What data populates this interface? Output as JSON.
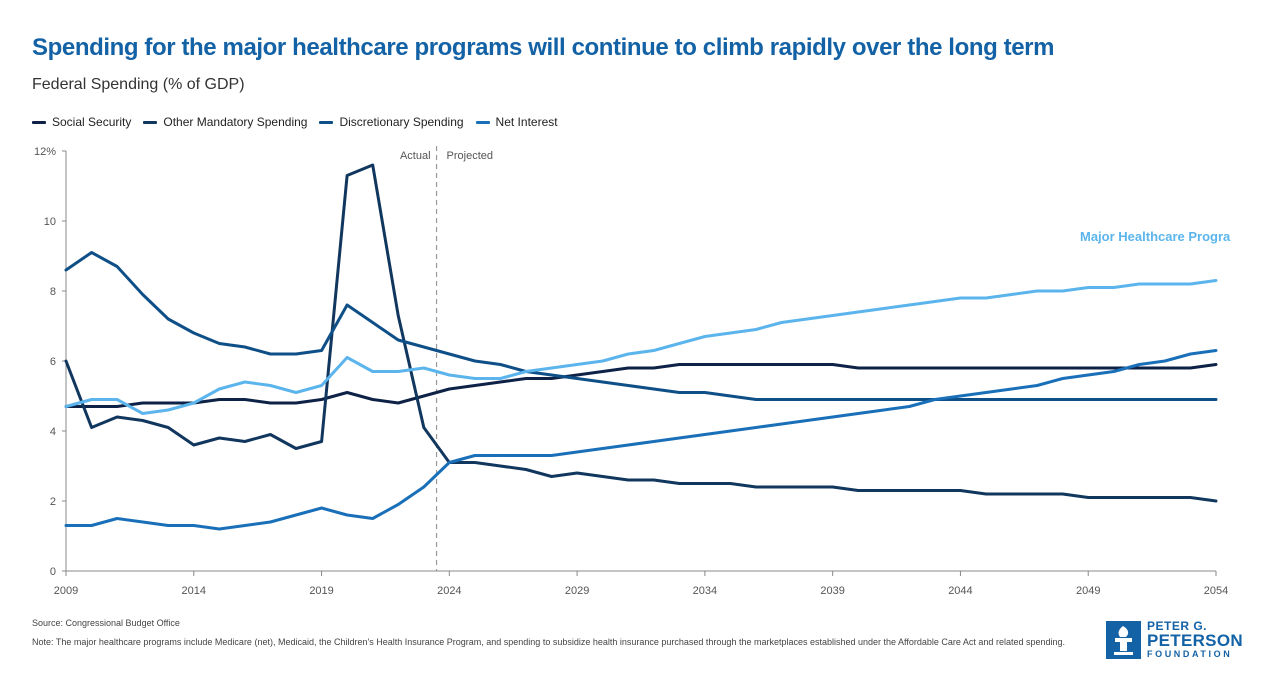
{
  "header": {
    "title": "Spending for the major healthcare programs will continue to climb rapidly over the long term",
    "subtitle": "Federal Spending (% of GDP)"
  },
  "legend": [
    {
      "label": "Social Security",
      "color": "#0d2246"
    },
    {
      "label": "Other Mandatory Spending",
      "color": "#12375f"
    },
    {
      "label": "Discretionary Spending",
      "color": "#0f4f88"
    },
    {
      "label": "Net Interest",
      "color": "#1a70b8"
    }
  ],
  "chart_data": {
    "type": "line",
    "title": "",
    "xlabel": "",
    "ylabel": "",
    "xlim": [
      2009,
      2054
    ],
    "ylim": [
      0,
      12
    ],
    "x_ticks": [
      "2009",
      "2014",
      "2019",
      "2024",
      "2029",
      "2034",
      "2039",
      "2044",
      "2049",
      "2054"
    ],
    "y_ticks": [
      "0",
      "2",
      "4",
      "6",
      "8",
      "10",
      "12%"
    ],
    "divider": {
      "x": 2023.5,
      "left_label": "Actual",
      "right_label": "Projected"
    },
    "annotation": {
      "text": "Major Healthcare Progra",
      "color": "#5bb5ec"
    },
    "x": [
      2009,
      2010,
      2011,
      2012,
      2013,
      2014,
      2015,
      2016,
      2017,
      2018,
      2019,
      2020,
      2021,
      2022,
      2023,
      2024,
      2025,
      2026,
      2027,
      2028,
      2029,
      2030,
      2031,
      2032,
      2033,
      2034,
      2035,
      2036,
      2037,
      2038,
      2039,
      2040,
      2041,
      2042,
      2043,
      2044,
      2045,
      2046,
      2047,
      2048,
      2049,
      2050,
      2051,
      2052,
      2053,
      2054
    ],
    "series": [
      {
        "name": "Social Security",
        "color": "#0d2246",
        "values": [
          4.7,
          4.7,
          4.7,
          4.8,
          4.8,
          4.8,
          4.9,
          4.9,
          4.8,
          4.8,
          4.9,
          5.1,
          4.9,
          4.8,
          5.0,
          5.2,
          5.3,
          5.4,
          5.5,
          5.5,
          5.6,
          5.7,
          5.8,
          5.8,
          5.9,
          5.9,
          5.9,
          5.9,
          5.9,
          5.9,
          5.9,
          5.8,
          5.8,
          5.8,
          5.8,
          5.8,
          5.8,
          5.8,
          5.8,
          5.8,
          5.8,
          5.8,
          5.8,
          5.8,
          5.8,
          5.9
        ]
      },
      {
        "name": "Other Mandatory Spending",
        "color": "#12375f",
        "values": [
          6.0,
          4.1,
          4.4,
          4.3,
          4.1,
          3.6,
          3.8,
          3.7,
          3.9,
          3.5,
          3.7,
          11.3,
          11.6,
          7.3,
          4.1,
          3.1,
          3.1,
          3.0,
          2.9,
          2.7,
          2.8,
          2.7,
          2.6,
          2.6,
          2.5,
          2.5,
          2.5,
          2.4,
          2.4,
          2.4,
          2.4,
          2.3,
          2.3,
          2.3,
          2.3,
          2.3,
          2.2,
          2.2,
          2.2,
          2.2,
          2.1,
          2.1,
          2.1,
          2.1,
          2.1,
          2.0
        ]
      },
      {
        "name": "Discretionary Spending",
        "color": "#0f4f88",
        "values": [
          8.6,
          9.1,
          8.7,
          7.9,
          7.2,
          6.8,
          6.5,
          6.4,
          6.2,
          6.2,
          6.3,
          7.6,
          7.1,
          6.6,
          6.4,
          6.2,
          6.0,
          5.9,
          5.7,
          5.6,
          5.5,
          5.4,
          5.3,
          5.2,
          5.1,
          5.1,
          5.0,
          4.9,
          4.9,
          4.9,
          4.9,
          4.9,
          4.9,
          4.9,
          4.9,
          4.9,
          4.9,
          4.9,
          4.9,
          4.9,
          4.9,
          4.9,
          4.9,
          4.9,
          4.9,
          4.9
        ]
      },
      {
        "name": "Net Interest",
        "color": "#1a70b8",
        "values": [
          1.3,
          1.3,
          1.5,
          1.4,
          1.3,
          1.3,
          1.2,
          1.3,
          1.4,
          1.6,
          1.8,
          1.6,
          1.5,
          1.9,
          2.4,
          3.1,
          3.3,
          3.3,
          3.3,
          3.3,
          3.4,
          3.5,
          3.6,
          3.7,
          3.8,
          3.9,
          4.0,
          4.1,
          4.2,
          4.3,
          4.4,
          4.5,
          4.6,
          4.7,
          4.9,
          5.0,
          5.1,
          5.2,
          5.3,
          5.5,
          5.6,
          5.7,
          5.9,
          6.0,
          6.2,
          6.3
        ]
      },
      {
        "name": "Major Healthcare Programs",
        "color": "#5bb5ec",
        "values": [
          4.7,
          4.9,
          4.9,
          4.5,
          4.6,
          4.8,
          5.2,
          5.4,
          5.3,
          5.1,
          5.3,
          6.1,
          5.7,
          5.7,
          5.8,
          5.6,
          5.5,
          5.5,
          5.7,
          5.8,
          5.9,
          6.0,
          6.2,
          6.3,
          6.5,
          6.7,
          6.8,
          6.9,
          7.1,
          7.2,
          7.3,
          7.4,
          7.5,
          7.6,
          7.7,
          7.8,
          7.8,
          7.9,
          8.0,
          8.0,
          8.1,
          8.1,
          8.2,
          8.2,
          8.2,
          8.3
        ]
      }
    ]
  },
  "footer": {
    "source": "Source: Congressional Budget Office",
    "note": "Note: The major healthcare programs include Medicare (net), Medicaid, the Children's Health Insurance Program, and spending to subsidize health insurance purchased through the marketplaces established under the Affordable Care Act and related spending."
  },
  "logo": {
    "line1": "PETER G.",
    "line2": "PETERSON",
    "line3": "FOUNDATION",
    "color": "#1462a6"
  }
}
